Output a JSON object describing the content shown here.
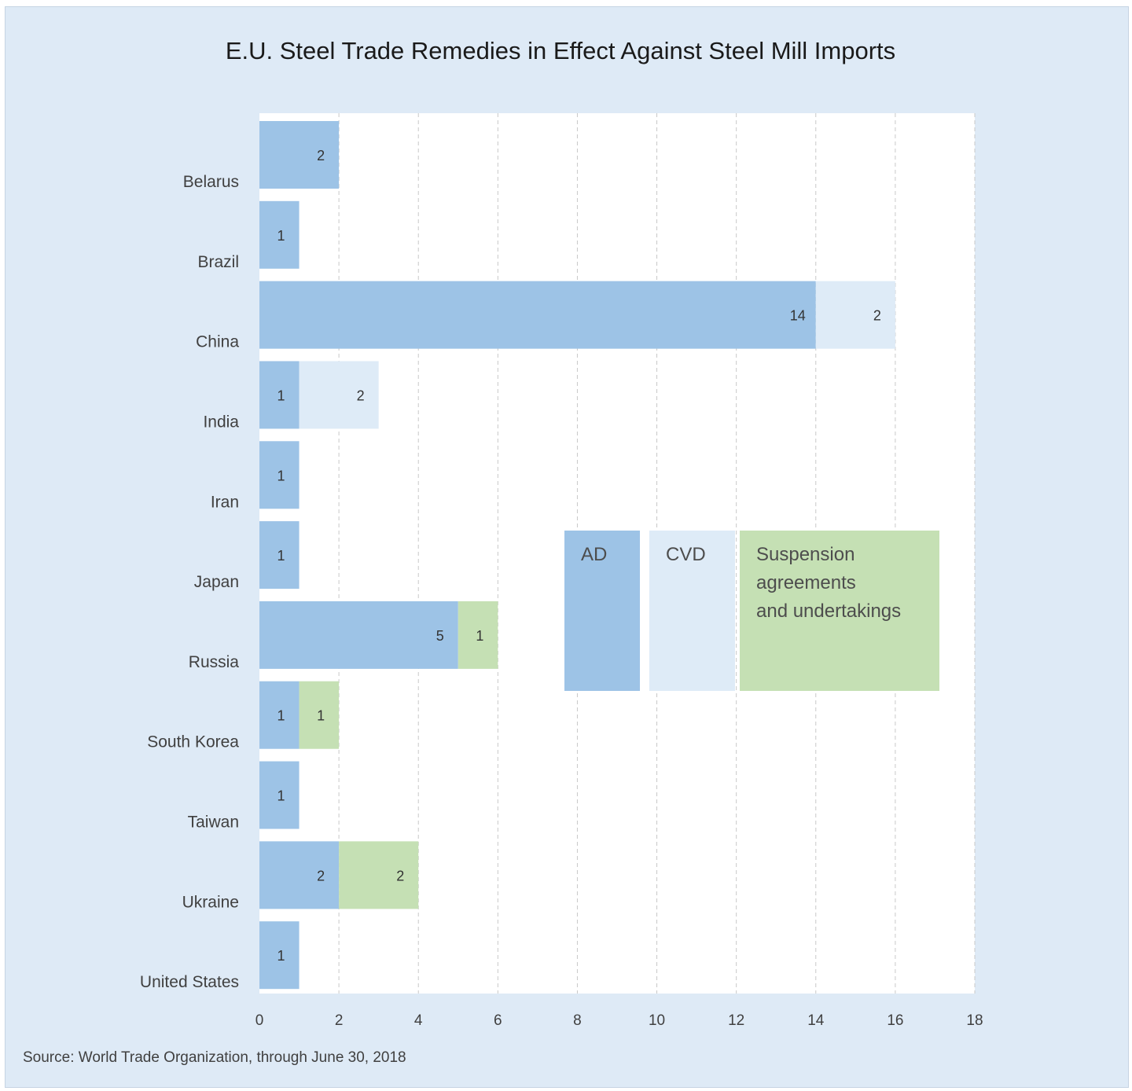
{
  "chart_data": {
    "type": "bar",
    "orientation": "horizontal",
    "stacked": true,
    "title": "E.U. Steel Trade Remedies in Effect Against Steel Mill Imports",
    "categories": [
      "Belarus",
      "Brazil",
      "China",
      "India",
      "Iran",
      "Japan",
      "Russia",
      "South Korea",
      "Taiwan",
      "Ukraine",
      "United States"
    ],
    "series": [
      {
        "name": "AD",
        "color": "#9dc3e6",
        "values": [
          2,
          1,
          14,
          1,
          1,
          1,
          5,
          1,
          1,
          2,
          1
        ]
      },
      {
        "name": "CVD",
        "color": "#deebf7",
        "values": [
          0,
          0,
          2,
          2,
          0,
          0,
          0,
          0,
          0,
          0,
          0
        ]
      },
      {
        "name": "Suspension agreements and undertakings",
        "legend_lines": [
          "Suspension",
          "agreements",
          "and undertakings"
        ],
        "color": "#c5e0b4",
        "values": [
          0,
          0,
          0,
          0,
          0,
          0,
          1,
          1,
          0,
          2,
          0
        ]
      }
    ],
    "xlim": [
      0,
      18
    ],
    "xticks": [
      0,
      2,
      4,
      6,
      8,
      10,
      12,
      14,
      16,
      18
    ],
    "grid": "vertical-dashed",
    "legend": "center-right",
    "source": "Source: World Trade Organization, through June 30, 2018"
  }
}
